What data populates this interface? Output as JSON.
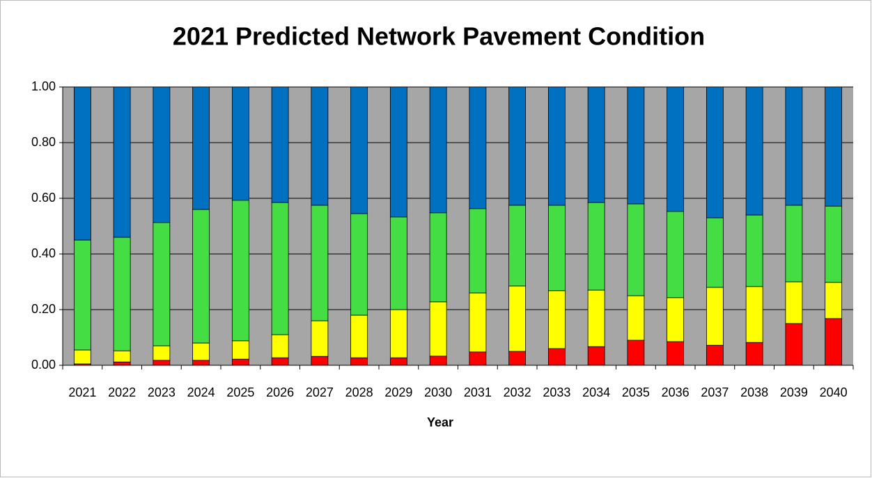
{
  "chart_data": {
    "type": "stacked_bar",
    "title": "2021 Predicted Network Pavement Condition",
    "xlabel": "Year",
    "categories": [
      "2021",
      "2022",
      "2023",
      "2024",
      "2025",
      "2026",
      "2027",
      "2028",
      "2029",
      "2030",
      "2031",
      "2032",
      "2033",
      "2034",
      "2035",
      "2036",
      "2037",
      "2038",
      "2039",
      "2040"
    ],
    "series": [
      {
        "color": "#ff0000",
        "values": [
          0.005,
          0.012,
          0.018,
          0.018,
          0.022,
          0.027,
          0.032,
          0.027,
          0.027,
          0.033,
          0.048,
          0.05,
          0.06,
          0.067,
          0.09,
          0.085,
          0.072,
          0.082,
          0.15,
          0.168
        ]
      },
      {
        "color": "#ffff00",
        "values": [
          0.05,
          0.04,
          0.052,
          0.062,
          0.066,
          0.083,
          0.128,
          0.153,
          0.173,
          0.195,
          0.212,
          0.235,
          0.208,
          0.203,
          0.16,
          0.158,
          0.208,
          0.201,
          0.15,
          0.13
        ]
      },
      {
        "color": "#44dd44",
        "values": [
          0.395,
          0.408,
          0.443,
          0.48,
          0.505,
          0.475,
          0.415,
          0.365,
          0.333,
          0.32,
          0.303,
          0.29,
          0.307,
          0.315,
          0.33,
          0.31,
          0.25,
          0.257,
          0.275,
          0.274
        ]
      },
      {
        "color": "#0070c0",
        "values": [
          0.55,
          0.54,
          0.487,
          0.44,
          0.407,
          0.415,
          0.425,
          0.455,
          0.467,
          0.452,
          0.437,
          0.425,
          0.425,
          0.415,
          0.42,
          0.447,
          0.47,
          0.46,
          0.425,
          0.428
        ]
      }
    ],
    "ylim": [
      0,
      1
    ],
    "yticks": [
      {
        "value": 0,
        "label": "0.00"
      },
      {
        "value": 0.2,
        "label": "0.20"
      },
      {
        "value": 0.4,
        "label": "0.40"
      },
      {
        "value": 0.6,
        "label": "0.60"
      },
      {
        "value": 0.8,
        "label": "0.80"
      },
      {
        "value": 1,
        "label": "1.00"
      }
    ],
    "grid": true,
    "plot_background": "#a6a6a6"
  }
}
